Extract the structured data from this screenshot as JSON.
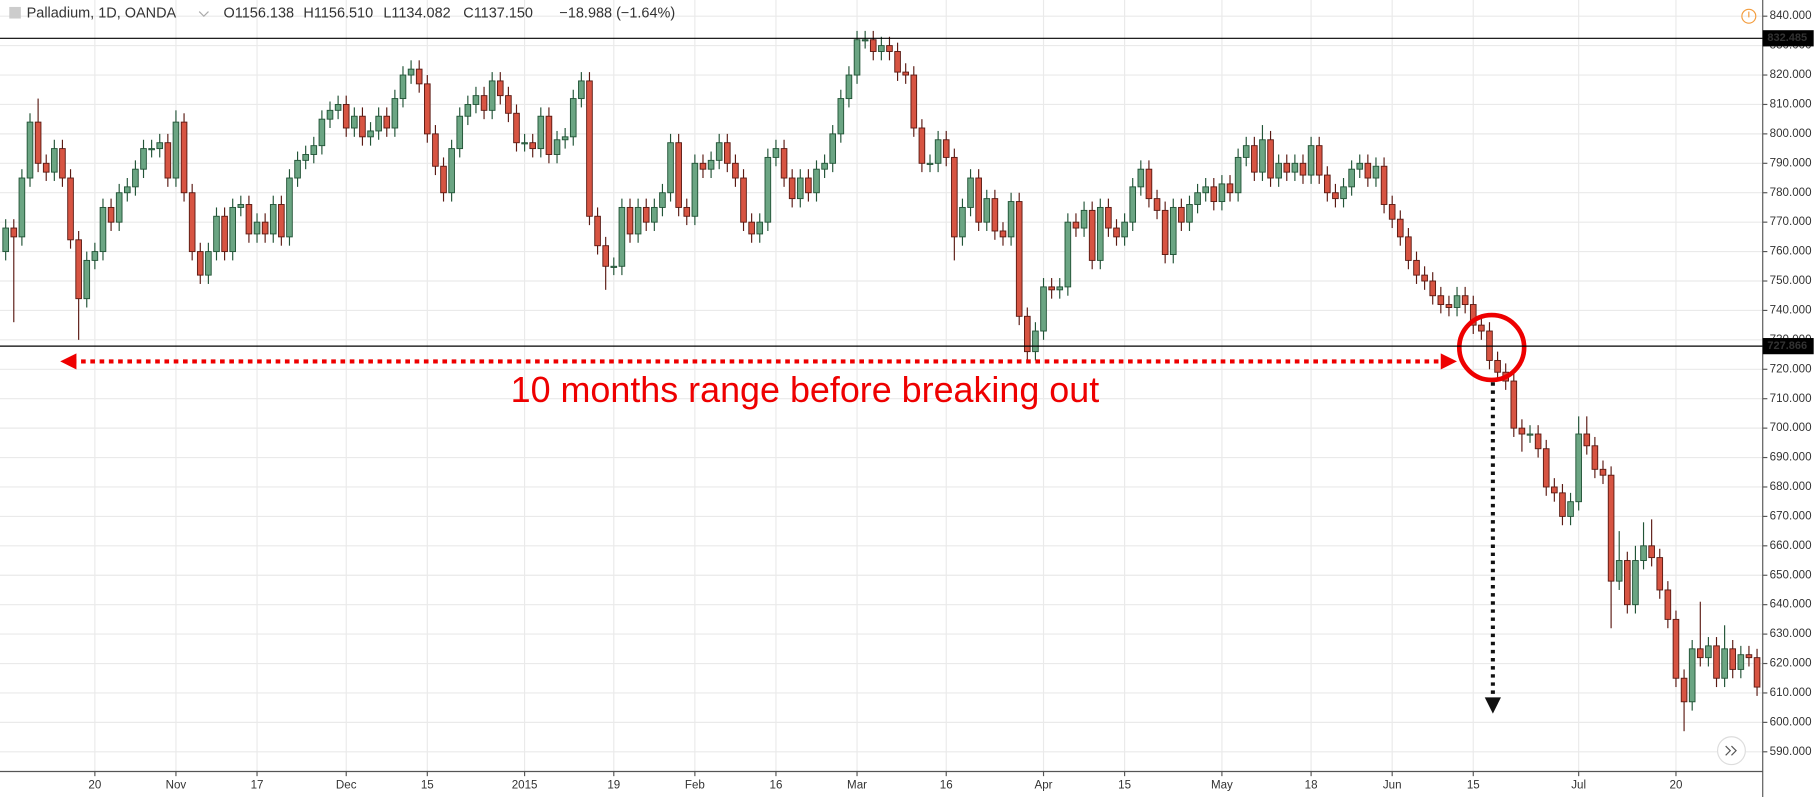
{
  "chart_data": {
    "type": "candlestick",
    "symbol": "Palladium, 1D, OANDA",
    "ohlc_text": {
      "open": "O1156.138",
      "high": "H1156.510",
      "low": "L1134.082",
      "close": "C1137.150",
      "change": "−18.988 (−1.64%)"
    },
    "annotation": "10 months range before breaking out",
    "up_color": "#6ba583",
    "down_color": "#d75442",
    "price_lines": [
      832.485,
      727.866
    ],
    "xlim": [
      -0.7,
      216.7
    ],
    "xticks": [
      {
        "value": 11,
        "label": "20"
      },
      {
        "value": 21,
        "label": "Nov"
      },
      {
        "value": 31,
        "label": "17"
      },
      {
        "value": 42,
        "label": "Dec"
      },
      {
        "value": 52,
        "label": "15"
      },
      {
        "value": 64,
        "label": "2015"
      },
      {
        "value": 75,
        "label": "19"
      },
      {
        "value": 85,
        "label": "Feb"
      },
      {
        "value": 95,
        "label": "16"
      },
      {
        "value": 105,
        "label": "Mar"
      },
      {
        "value": 116,
        "label": "16"
      },
      {
        "value": 128,
        "label": "Apr"
      },
      {
        "value": 138,
        "label": "15"
      },
      {
        "value": 150,
        "label": "May"
      },
      {
        "value": 161,
        "label": "18"
      },
      {
        "value": 171,
        "label": "Jun"
      },
      {
        "value": 181,
        "label": "15"
      },
      {
        "value": 194,
        "label": "Jul"
      },
      {
        "value": 206,
        "label": "20"
      }
    ],
    "ylim": [
      583.3,
      845.5
    ],
    "yticks": [
      {
        "value": 590,
        "label": "590.000"
      },
      {
        "value": 600,
        "label": "600.000"
      },
      {
        "value": 610,
        "label": "610.000"
      },
      {
        "value": 620,
        "label": "620.000"
      },
      {
        "value": 630,
        "label": "630.000"
      },
      {
        "value": 640,
        "label": "640.000"
      },
      {
        "value": 650,
        "label": "650.000"
      },
      {
        "value": 660,
        "label": "660.000"
      },
      {
        "value": 670,
        "label": "670.000"
      },
      {
        "value": 680,
        "label": "680.000"
      },
      {
        "value": 690,
        "label": "690.000"
      },
      {
        "value": 700,
        "label": "700.000"
      },
      {
        "value": 710,
        "label": "710.000"
      },
      {
        "value": 720,
        "label": "720.000"
      },
      {
        "value": 730,
        "label": "730.000"
      },
      {
        "value": 740,
        "label": "740.000"
      },
      {
        "value": 750,
        "label": "750.000"
      },
      {
        "value": 760,
        "label": "760.000"
      },
      {
        "value": 770,
        "label": "770.000"
      },
      {
        "value": 780,
        "label": "780.000"
      },
      {
        "value": 790,
        "label": "790.000"
      },
      {
        "value": 800,
        "label": "800.000"
      },
      {
        "value": 810,
        "label": "810.000"
      },
      {
        "value": 820,
        "label": "820.000"
      },
      {
        "value": 830,
        "label": "830.000"
      },
      {
        "value": 840,
        "label": "840.000"
      }
    ],
    "open": [
      760,
      768,
      765,
      785,
      804,
      790,
      787,
      795,
      785,
      764,
      744,
      757,
      760,
      775,
      770,
      780,
      782,
      788,
      795,
      795,
      797,
      785,
      804,
      780,
      760,
      752,
      760,
      772,
      760,
      775,
      776,
      766,
      770,
      766,
      776,
      765,
      785,
      791,
      793,
      796,
      805,
      808,
      810,
      802,
      806,
      799,
      801,
      806,
      802,
      812,
      820,
      822,
      817,
      800,
      789,
      780,
      795,
      806,
      810,
      813,
      808,
      818,
      813,
      807,
      797,
      797,
      795,
      806,
      793,
      798,
      799,
      812,
      818,
      772,
      762,
      755,
      755,
      775,
      766,
      775,
      770,
      775,
      780,
      797,
      775,
      772,
      790,
      788,
      791,
      797,
      790,
      785,
      770,
      766,
      770,
      792,
      795,
      785,
      778,
      785,
      780,
      788,
      790,
      800,
      812,
      820,
      832,
      832,
      828,
      830,
      828,
      821,
      820,
      802,
      790,
      790,
      798,
      792,
      765,
      775,
      785,
      770,
      778,
      767,
      765,
      777,
      738,
      726,
      733,
      748,
      747,
      748,
      770,
      768,
      774,
      757,
      775,
      768,
      765,
      770,
      782,
      788,
      778,
      774,
      759,
      775,
      770,
      776,
      780,
      782,
      777,
      783,
      780,
      792,
      796,
      787,
      798,
      785,
      790,
      787,
      790,
      786,
      796,
      786,
      780,
      778,
      782,
      788,
      790,
      785,
      789,
      776,
      771,
      765,
      757,
      752,
      750,
      745,
      742,
      741,
      745,
      742,
      735,
      733,
      723,
      719,
      716,
      700,
      698,
      698,
      693,
      680,
      678,
      670,
      675,
      698,
      694,
      686,
      684,
      648,
      655,
      640,
      655,
      660,
      656,
      645,
      635,
      615,
      607,
      625,
      622,
      626,
      615,
      625,
      618,
      623,
      622
    ],
    "high": [
      771,
      771,
      788,
      807,
      812,
      793,
      798,
      798,
      788,
      767,
      760,
      763,
      778,
      778,
      783,
      785,
      791,
      798,
      798,
      800,
      800,
      808,
      807,
      783,
      763,
      763,
      775,
      775,
      778,
      779,
      779,
      773,
      773,
      779,
      779,
      788,
      794,
      796,
      799,
      808,
      811,
      813,
      813,
      809,
      809,
      804,
      809,
      809,
      815,
      823,
      825,
      825,
      820,
      803,
      792,
      798,
      809,
      813,
      816,
      816,
      821,
      821,
      816,
      810,
      800,
      800,
      809,
      809,
      801,
      802,
      815,
      821,
      821,
      775,
      765,
      758,
      778,
      778,
      778,
      778,
      778,
      783,
      800,
      800,
      778,
      793,
      793,
      794,
      800,
      800,
      793,
      788,
      773,
      773,
      795,
      798,
      798,
      788,
      788,
      788,
      791,
      793,
      803,
      815,
      823,
      835,
      835,
      835,
      833,
      833,
      831,
      824,
      823,
      805,
      793,
      801,
      801,
      795,
      778,
      788,
      788,
      781,
      781,
      770,
      780,
      780,
      741,
      736,
      751,
      751,
      751,
      773,
      773,
      777,
      777,
      778,
      778,
      771,
      773,
      785,
      791,
      791,
      781,
      777,
      778,
      778,
      779,
      783,
      785,
      785,
      786,
      786,
      795,
      799,
      799,
      803,
      801,
      793,
      793,
      793,
      793,
      799,
      799,
      789,
      783,
      785,
      791,
      793,
      793,
      792,
      792,
      779,
      774,
      768,
      760,
      755,
      753,
      748,
      745,
      748,
      748,
      745,
      738,
      736,
      726,
      722,
      719,
      703,
      701,
      701,
      696,
      683,
      681,
      678,
      704,
      704,
      697,
      689,
      687,
      665,
      658,
      660,
      668,
      669,
      659,
      648,
      638,
      618,
      628,
      641,
      629,
      629,
      633,
      628,
      626,
      626,
      625
    ],
    "low": [
      757,
      736,
      762,
      782,
      787,
      784,
      784,
      782,
      761,
      730,
      741,
      754,
      757,
      767,
      767,
      777,
      779,
      785,
      792,
      792,
      782,
      782,
      777,
      757,
      749,
      749,
      757,
      757,
      757,
      772,
      763,
      763,
      763,
      763,
      762,
      762,
      782,
      788,
      790,
      793,
      802,
      805,
      799,
      799,
      796,
      796,
      798,
      799,
      799,
      809,
      817,
      814,
      797,
      786,
      777,
      777,
      792,
      803,
      807,
      805,
      805,
      810,
      804,
      794,
      794,
      792,
      792,
      790,
      790,
      795,
      796,
      809,
      769,
      759,
      747,
      752,
      752,
      763,
      763,
      767,
      767,
      772,
      777,
      772,
      769,
      769,
      785,
      785,
      788,
      787,
      782,
      767,
      763,
      763,
      767,
      789,
      782,
      775,
      775,
      777,
      777,
      785,
      787,
      797,
      809,
      817,
      829,
      825,
      825,
      825,
      818,
      817,
      799,
      787,
      787,
      787,
      789,
      757,
      762,
      772,
      767,
      767,
      764,
      762,
      762,
      735,
      722,
      723,
      730,
      744,
      744,
      745,
      765,
      765,
      754,
      754,
      765,
      762,
      762,
      767,
      779,
      775,
      771,
      756,
      756,
      767,
      767,
      773,
      777,
      774,
      774,
      777,
      777,
      789,
      784,
      784,
      782,
      782,
      784,
      784,
      783,
      783,
      783,
      777,
      775,
      775,
      779,
      785,
      782,
      782,
      773,
      768,
      762,
      754,
      749,
      747,
      742,
      739,
      738,
      738,
      739,
      732,
      730,
      720,
      716,
      713,
      697,
      692,
      695,
      690,
      677,
      675,
      667,
      667,
      672,
      691,
      683,
      681,
      632,
      645,
      637,
      637,
      652,
      653,
      642,
      632,
      612,
      597,
      604,
      619,
      619,
      612,
      612,
      615,
      615,
      619,
      609
    ],
    "close": [
      768,
      765,
      785,
      804,
      790,
      787,
      795,
      785,
      764,
      744,
      757,
      760,
      775,
      770,
      780,
      782,
      788,
      795,
      795,
      797,
      785,
      804,
      780,
      760,
      752,
      760,
      772,
      760,
      775,
      776,
      766,
      770,
      766,
      776,
      765,
      785,
      791,
      793,
      796,
      805,
      808,
      810,
      802,
      806,
      799,
      801,
      806,
      802,
      812,
      820,
      822,
      817,
      800,
      789,
      780,
      795,
      806,
      810,
      813,
      808,
      818,
      813,
      807,
      797,
      797,
      795,
      806,
      793,
      798,
      799,
      812,
      818,
      772,
      762,
      755,
      755,
      775,
      766,
      775,
      770,
      775,
      780,
      797,
      775,
      772,
      790,
      788,
      791,
      797,
      790,
      785,
      770,
      766,
      770,
      792,
      795,
      785,
      778,
      785,
      780,
      788,
      790,
      800,
      812,
      820,
      832,
      832,
      828,
      830,
      828,
      821,
      820,
      802,
      790,
      790,
      798,
      792,
      765,
      775,
      785,
      770,
      778,
      767,
      765,
      777,
      738,
      726,
      733,
      748,
      747,
      748,
      770,
      768,
      774,
      757,
      775,
      768,
      765,
      770,
      782,
      788,
      778,
      774,
      759,
      775,
      770,
      776,
      780,
      782,
      777,
      783,
      780,
      792,
      796,
      787,
      798,
      785,
      790,
      787,
      790,
      786,
      796,
      786,
      780,
      778,
      782,
      788,
      790,
      785,
      789,
      776,
      771,
      765,
      757,
      752,
      750,
      745,
      742,
      741,
      745,
      742,
      735,
      733,
      723,
      719,
      716,
      700,
      698,
      698,
      693,
      680,
      678,
      670,
      675,
      698,
      694,
      686,
      684,
      648,
      655,
      640,
      655,
      660,
      656,
      645,
      635,
      615,
      607,
      625,
      622,
      626,
      615,
      625,
      618,
      623,
      622,
      612
    ]
  }
}
